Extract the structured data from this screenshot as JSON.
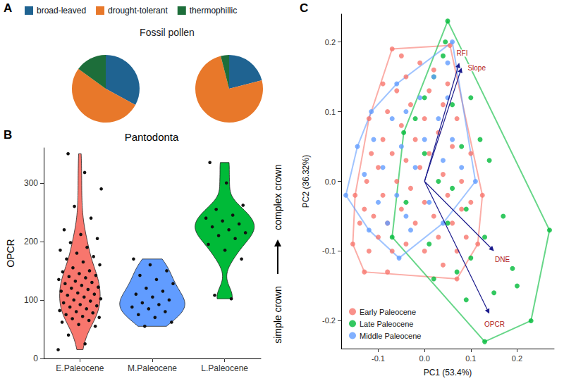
{
  "chart_data": [
    {
      "type": "pie",
      "panel": "A",
      "title": "Fossil pollen",
      "categories": [
        "broad-leaved",
        "drought-tolerant",
        "thermophillic"
      ],
      "colors": [
        "#1f6391",
        "#e8782a",
        "#1d6e3a"
      ],
      "series": [
        {
          "values": [
            33,
            52,
            15
          ]
        },
        {
          "values": [
            21,
            75,
            4
          ]
        }
      ],
      "legend": "top",
      "data_labels": false
    },
    {
      "type": "violin",
      "panel": "B",
      "title": "Pantodonta",
      "y_label": "OPCR",
      "categories": [
        "E.Paleocene",
        "M.Paleocene",
        "L.Paleocene"
      ],
      "colors": [
        "#f8766d",
        "#619cff",
        "#00ba38"
      ],
      "values": [
        [
          15,
          25,
          40,
          55,
          58,
          62,
          65,
          68,
          70,
          72,
          75,
          78,
          80,
          82,
          85,
          88,
          90,
          92,
          95,
          98,
          100,
          102,
          105,
          108,
          110,
          112,
          115,
          118,
          120,
          122,
          125,
          128,
          130,
          132,
          135,
          138,
          140,
          142,
          145,
          148,
          150,
          155,
          160,
          165,
          170,
          175,
          180,
          185,
          190,
          198,
          205,
          212,
          220,
          240,
          260,
          290,
          318,
          350
        ],
        [
          55,
          62,
          70,
          75,
          80,
          85,
          88,
          92,
          95,
          100,
          105,
          110,
          115,
          120,
          128,
          135,
          142,
          150,
          160,
          170
        ],
        [
          102,
          108,
          170,
          185,
          195,
          205,
          210,
          215,
          220,
          225,
          230,
          235,
          240,
          245,
          255,
          262,
          300,
          335
        ]
      ],
      "ylim": [
        0,
        360
      ],
      "yticks": [
        0,
        100,
        200,
        300
      ],
      "annotations": [
        "complex crown",
        "simple crown"
      ],
      "grid": false
    },
    {
      "type": "scatter",
      "panel": "C",
      "x_label": "PC1 (53.4%)",
      "y_label": "PC2 (36.32%)",
      "xlim": [
        -0.18,
        0.28
      ],
      "ylim": [
        -0.24,
        0.24
      ],
      "xticks": [
        -0.1,
        {
          "value": 0,
          "label": "0.0"
        },
        0.1,
        0.2
      ],
      "yticks": [
        -0.2,
        -0.1,
        {
          "value": 0,
          "label": "0.0"
        },
        0.1,
        0.2
      ],
      "legend": "bottom-left",
      "grid": false,
      "series": [
        {
          "name": "Early Paleocene",
          "color": "#f8766d",
          "values": [
            [
              -0.155,
              -0.09
            ],
            [
              -0.15,
              -0.02
            ],
            [
              -0.12,
              0.09
            ],
            [
              -0.09,
              0.14
            ],
            [
              -0.07,
              0.19
            ],
            [
              0.055,
              0.195
            ],
            [
              0.1,
              0.04
            ],
            [
              0.125,
              -0.02
            ],
            [
              0.115,
              -0.09
            ],
            [
              0.07,
              -0.14
            ],
            [
              -0.08,
              -0.13
            ],
            [
              -0.13,
              -0.13
            ],
            [
              -0.14,
              -0.06
            ],
            [
              -0.13,
              -0.04
            ],
            [
              -0.12,
              -0.1
            ],
            [
              -0.11,
              -0.05
            ],
            [
              -0.1,
              0.02
            ],
            [
              -0.1,
              -0.08
            ],
            [
              -0.09,
              0.06
            ],
            [
              -0.09,
              -0.02
            ],
            [
              -0.08,
              0.1
            ],
            [
              -0.08,
              -0.06
            ],
            [
              -0.07,
              0.04
            ],
            [
              -0.07,
              -0.1
            ],
            [
              -0.06,
              0.13
            ],
            [
              -0.06,
              0.0
            ],
            [
              -0.05,
              0.08
            ],
            [
              -0.05,
              -0.04
            ],
            [
              -0.04,
              0.15
            ],
            [
              -0.04,
              0.03
            ],
            [
              -0.04,
              -0.09
            ],
            [
              -0.03,
              0.11
            ],
            [
              -0.03,
              -0.01
            ],
            [
              -0.02,
              0.06
            ],
            [
              -0.02,
              -0.06
            ],
            [
              -0.01,
              0.17
            ],
            [
              -0.01,
              0.02
            ],
            [
              0.0,
              0.09
            ],
            [
              0.0,
              -0.03
            ],
            [
              0.0,
              -0.1
            ],
            [
              0.01,
              0.13
            ],
            [
              0.01,
              0.04
            ],
            [
              0.02,
              -0.05
            ],
            [
              0.02,
              0.16
            ],
            [
              0.03,
              0.07
            ],
            [
              0.03,
              -0.08
            ],
            [
              0.04,
              0.01
            ],
            [
              0.04,
              0.11
            ],
            [
              0.05,
              -0.02
            ],
            [
              0.05,
              0.14
            ],
            [
              0.06,
              0.05
            ],
            [
              0.06,
              -0.06
            ],
            [
              0.07,
              0.09
            ],
            [
              0.07,
              -0.1
            ],
            [
              0.08,
              0.0
            ],
            [
              0.08,
              -0.04
            ],
            [
              0.09,
              -0.08
            ],
            [
              0.1,
              -0.03
            ],
            [
              -0.115,
              0.04
            ],
            [
              -0.125,
              0.0
            ],
            [
              -0.05,
              0.18
            ],
            [
              0.04,
              -0.12
            ]
          ]
        },
        {
          "name": "Late Paleocene",
          "color": "#00ba38",
          "values": [
            [
              -0.07,
              -0.08
            ],
            [
              -0.045,
              0.07
            ],
            [
              0.0,
              0.12
            ],
            [
              0.05,
              0.23
            ],
            [
              0.045,
              0.2
            ],
            [
              0.27,
              -0.07
            ],
            [
              0.23,
              -0.2
            ],
            [
              0.13,
              -0.23
            ],
            [
              0.02,
              -0.14
            ],
            [
              -0.04,
              -0.03
            ],
            [
              -0.02,
              0.09
            ],
            [
              0.0,
              0.04
            ],
            [
              0.01,
              -0.09
            ],
            [
              0.02,
              0.15
            ],
            [
              0.03,
              0.0
            ],
            [
              0.04,
              0.18
            ],
            [
              0.05,
              -0.06
            ],
            [
              0.06,
              0.11
            ],
            [
              0.07,
              -0.13
            ],
            [
              0.08,
              0.05
            ],
            [
              0.09,
              -0.04
            ],
            [
              0.1,
              0.12
            ],
            [
              0.1,
              -0.11
            ],
            [
              0.12,
              0.06
            ],
            [
              0.13,
              -0.08
            ],
            [
              0.14,
              0.03
            ],
            [
              0.15,
              -0.16
            ],
            [
              0.17,
              -0.05
            ],
            [
              0.19,
              -0.125
            ],
            [
              0.2,
              -0.15
            ],
            [
              0.09,
              -0.17
            ],
            [
              0.06,
              -0.01
            ]
          ]
        },
        {
          "name": "Middle Paleocene",
          "color": "#619cff",
          "values": [
            [
              -0.17,
              -0.02
            ],
            [
              -0.145,
              0.05
            ],
            [
              -0.115,
              0.1
            ],
            [
              -0.06,
              0.14
            ],
            [
              0.06,
              0.2
            ],
            [
              0.11,
              0.0
            ],
            [
              0.04,
              -0.06
            ],
            [
              -0.055,
              -0.11
            ],
            [
              -0.12,
              -0.07
            ],
            [
              -0.13,
              0.01
            ],
            [
              -0.11,
              0.06
            ],
            [
              -0.1,
              -0.03
            ],
            [
              -0.09,
              0.02
            ],
            [
              -0.08,
              -0.06
            ],
            [
              -0.07,
              0.09
            ],
            [
              -0.06,
              -0.02
            ],
            [
              -0.05,
              0.05
            ],
            [
              -0.04,
              0.1
            ],
            [
              -0.03,
              -0.07
            ],
            [
              -0.02,
              0.02
            ],
            [
              -0.01,
              0.12
            ],
            [
              0.0,
              0.06
            ],
            [
              0.01,
              -0.03
            ],
            [
              0.02,
              0.15
            ],
            [
              0.03,
              0.09
            ],
            [
              0.04,
              0.03
            ],
            [
              0.05,
              0.12
            ],
            [
              0.06,
              0.06
            ],
            [
              0.08,
              0.02
            ],
            [
              0.05,
              0.17
            ],
            [
              -0.04,
              -0.05
            ]
          ]
        }
      ],
      "arrows": [
        {
          "label": "RFI",
          "x": 0.075,
          "y": 0.17
        },
        {
          "label": "Slope",
          "x": 0.08,
          "y": 0.163
        },
        {
          "label": "DNE",
          "x": 0.15,
          "y": -0.1
        },
        {
          "label": "OPCR",
          "x": 0.14,
          "y": -0.19
        }
      ]
    }
  ]
}
